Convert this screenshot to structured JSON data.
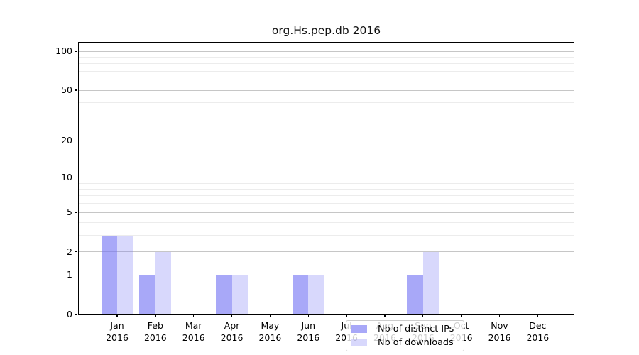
{
  "chart_data": {
    "type": "bar",
    "title": "org.Hs.pep.db 2016",
    "year_label": "2016",
    "categories": [
      "Jan",
      "Feb",
      "Mar",
      "Apr",
      "May",
      "Jun",
      "Jul",
      "Aug",
      "Sep",
      "Oct",
      "Nov",
      "Dec"
    ],
    "series": [
      {
        "name": "Nb of distinct IPs",
        "color": "rgba(115,115,243,0.62)",
        "solid_hex": "#a8a8f8",
        "values": [
          3,
          1,
          0,
          1,
          0,
          1,
          0,
          0,
          1,
          0,
          0,
          0
        ]
      },
      {
        "name": "Nb of downloads",
        "color": "rgba(115,115,243,0.28)",
        "solid_hex": "#d8d8f9",
        "values": [
          3,
          2,
          0,
          1,
          0,
          1,
          0,
          0,
          2,
          0,
          0,
          0
        ]
      }
    ],
    "y_axis": {
      "scale": "log1p",
      "ticks_labeled": [
        0,
        1,
        2,
        5,
        10,
        20,
        50,
        100
      ],
      "ticks_minor": [
        3,
        4,
        6,
        7,
        8,
        9,
        30,
        40,
        60,
        70,
        80,
        90
      ],
      "ylim": [
        0,
        118
      ]
    },
    "xlabel": "",
    "ylabel": "",
    "grid": "horizontal",
    "legend_position": "bottom-center",
    "colors": {
      "bar_base": "#7373f3",
      "grid_major": "#c6c6c6",
      "grid_minor": "#ececec",
      "axis": "#000000"
    }
  }
}
